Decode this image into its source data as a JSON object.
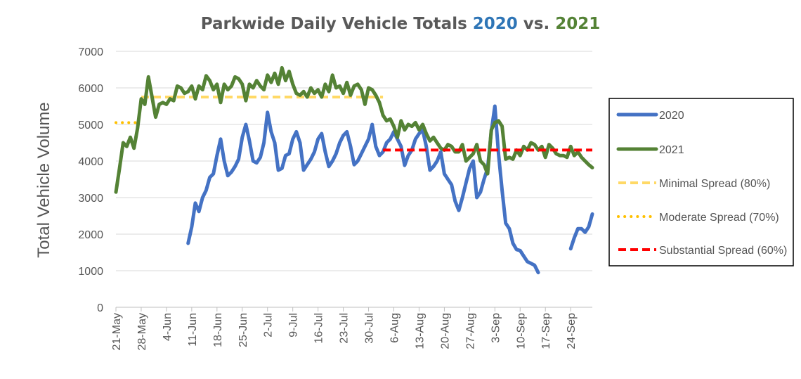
{
  "chart_data": {
    "type": "line",
    "title": {
      "prefix": "Parkwide Daily Vehicle Totals ",
      "year_a": "2020",
      "middle": " vs. ",
      "year_b": "2021"
    },
    "ylabel": "Total Vehicle Volume",
    "xlabel": "",
    "ylim": [
      0,
      7000
    ],
    "yticks": [
      0,
      1000,
      2000,
      3000,
      4000,
      5000,
      6000,
      7000
    ],
    "x_start": "21-May",
    "x_days": 133,
    "xticks": [
      {
        "day": 0,
        "label": "21-May"
      },
      {
        "day": 7,
        "label": "28-May"
      },
      {
        "day": 14,
        "label": "4-Jun"
      },
      {
        "day": 21,
        "label": "11-Jun"
      },
      {
        "day": 28,
        "label": "18-Jun"
      },
      {
        "day": 35,
        "label": "25-Jun"
      },
      {
        "day": 42,
        "label": "2-Jul"
      },
      {
        "day": 49,
        "label": "9-Jul"
      },
      {
        "day": 56,
        "label": "16-Jul"
      },
      {
        "day": 63,
        "label": "23-Jul"
      },
      {
        "day": 70,
        "label": "30-Jul"
      },
      {
        "day": 77,
        "label": "6-Aug"
      },
      {
        "day": 84,
        "label": "13-Aug"
      },
      {
        "day": 91,
        "label": "20-Aug"
      },
      {
        "day": 98,
        "label": "27-Aug"
      },
      {
        "day": 105,
        "label": "3-Sep"
      },
      {
        "day": 112,
        "label": "10-Sep"
      },
      {
        "day": 119,
        "label": "17-Sep"
      },
      {
        "day": 126,
        "label": "24-Sep"
      }
    ],
    "grid": true,
    "legend_position": "right",
    "series": [
      {
        "name": "2020",
        "color": "#4472C4",
        "style": "solid",
        "segments": [
          [
            [
              20,
              1750
            ],
            [
              21,
              2200
            ],
            [
              22,
              2850
            ],
            [
              23,
              2620
            ],
            [
              24,
              3000
            ],
            [
              25,
              3200
            ],
            [
              26,
              3550
            ],
            [
              27,
              3650
            ],
            [
              28,
              4150
            ],
            [
              29,
              4600
            ],
            [
              30,
              4000
            ],
            [
              31,
              3600
            ],
            [
              32,
              3700
            ],
            [
              33,
              3850
            ],
            [
              34,
              4050
            ],
            [
              35,
              4650
            ],
            [
              36,
              5000
            ],
            [
              37,
              4550
            ],
            [
              38,
              4000
            ],
            [
              39,
              3950
            ],
            [
              40,
              4100
            ],
            [
              41,
              4500
            ],
            [
              42,
              5330
            ],
            [
              43,
              4800
            ],
            [
              44,
              4500
            ],
            [
              45,
              3750
            ],
            [
              46,
              3800
            ],
            [
              47,
              4150
            ],
            [
              48,
              4200
            ],
            [
              49,
              4600
            ],
            [
              50,
              4800
            ],
            [
              51,
              4500
            ],
            [
              52,
              3750
            ],
            [
              53,
              3900
            ],
            [
              54,
              4050
            ],
            [
              55,
              4250
            ],
            [
              56,
              4600
            ],
            [
              57,
              4750
            ],
            [
              58,
              4250
            ],
            [
              59,
              3850
            ],
            [
              60,
              4000
            ],
            [
              61,
              4200
            ],
            [
              62,
              4500
            ],
            [
              63,
              4700
            ],
            [
              64,
              4800
            ],
            [
              65,
              4400
            ],
            [
              66,
              3900
            ],
            [
              67,
              4000
            ],
            [
              68,
              4200
            ],
            [
              69,
              4400
            ],
            [
              70,
              4600
            ],
            [
              71,
              5000
            ],
            [
              72,
              4400
            ],
            [
              73,
              4150
            ],
            [
              74,
              4250
            ],
            [
              75,
              4500
            ],
            [
              76,
              4600
            ],
            [
              77,
              4800
            ],
            [
              78,
              4600
            ],
            [
              79,
              4400
            ],
            [
              80,
              3880
            ],
            [
              81,
              4150
            ],
            [
              82,
              4300
            ],
            [
              83,
              4600
            ],
            [
              84,
              4750
            ],
            [
              85,
              4850
            ],
            [
              86,
              4400
            ],
            [
              87,
              3750
            ],
            [
              88,
              3850
            ],
            [
              89,
              4000
            ],
            [
              90,
              4250
            ],
            [
              91,
              3650
            ],
            [
              92,
              3500
            ],
            [
              93,
              3350
            ],
            [
              94,
              2900
            ],
            [
              95,
              2650
            ],
            [
              96,
              3000
            ],
            [
              97,
              3400
            ],
            [
              98,
              3800
            ],
            [
              99,
              4000
            ],
            [
              100,
              3000
            ],
            [
              101,
              3150
            ],
            [
              102,
              3500
            ],
            [
              103,
              3800
            ],
            [
              104,
              4800
            ],
            [
              105,
              5500
            ],
            [
              106,
              4200
            ],
            [
              107,
              3200
            ],
            [
              108,
              2300
            ],
            [
              109,
              2150
            ],
            [
              110,
              1750
            ],
            [
              111,
              1580
            ],
            [
              112,
              1550
            ],
            [
              113,
              1400
            ],
            [
              114,
              1250
            ],
            [
              115,
              1200
            ],
            [
              116,
              1150
            ],
            [
              117,
              950
            ]
          ],
          [
            [
              126,
              1600
            ],
            [
              127,
              1900
            ],
            [
              128,
              2150
            ],
            [
              129,
              2150
            ],
            [
              130,
              2050
            ],
            [
              131,
              2200
            ],
            [
              132,
              2550
            ]
          ]
        ]
      },
      {
        "name": "2021",
        "color": "#548235",
        "style": "solid",
        "segments": [
          [
            [
              0,
              3150
            ],
            [
              1,
              3800
            ],
            [
              2,
              4500
            ],
            [
              3,
              4400
            ],
            [
              4,
              4650
            ],
            [
              5,
              4350
            ],
            [
              6,
              4900
            ],
            [
              7,
              5700
            ],
            [
              8,
              5550
            ],
            [
              9,
              6300
            ],
            [
              10,
              5750
            ],
            [
              11,
              5200
            ],
            [
              12,
              5550
            ],
            [
              13,
              5600
            ],
            [
              14,
              5550
            ],
            [
              15,
              5700
            ],
            [
              16,
              5650
            ],
            [
              17,
              6050
            ],
            [
              18,
              6000
            ],
            [
              19,
              5850
            ],
            [
              20,
              5900
            ],
            [
              21,
              6050
            ],
            [
              22,
              5700
            ],
            [
              23,
              6050
            ],
            [
              24,
              5950
            ],
            [
              25,
              6330
            ],
            [
              26,
              6200
            ],
            [
              27,
              5950
            ],
            [
              28,
              6100
            ],
            [
              29,
              5600
            ],
            [
              30,
              6100
            ],
            [
              31,
              5950
            ],
            [
              32,
              6050
            ],
            [
              33,
              6300
            ],
            [
              34,
              6250
            ],
            [
              35,
              6100
            ],
            [
              36,
              5650
            ],
            [
              37,
              6100
            ],
            [
              38,
              6000
            ],
            [
              39,
              6200
            ],
            [
              40,
              6050
            ],
            [
              41,
              5950
            ],
            [
              42,
              6350
            ],
            [
              43,
              6150
            ],
            [
              44,
              6400
            ],
            [
              45,
              6100
            ],
            [
              46,
              6550
            ],
            [
              47,
              6200
            ],
            [
              48,
              6450
            ],
            [
              49,
              6100
            ],
            [
              50,
              5850
            ],
            [
              51,
              5800
            ],
            [
              52,
              5900
            ],
            [
              53,
              5750
            ],
            [
              54,
              6000
            ],
            [
              55,
              5850
            ],
            [
              56,
              5950
            ],
            [
              57,
              5750
            ],
            [
              58,
              6100
            ],
            [
              59,
              5900
            ],
            [
              60,
              6350
            ],
            [
              61,
              6000
            ],
            [
              62,
              6050
            ],
            [
              63,
              5850
            ],
            [
              64,
              6150
            ],
            [
              65,
              5800
            ],
            [
              66,
              6050
            ],
            [
              67,
              6100
            ],
            [
              68,
              5950
            ],
            [
              69,
              5550
            ],
            [
              70,
              6000
            ],
            [
              71,
              5950
            ],
            [
              72,
              5800
            ],
            [
              73,
              5600
            ],
            [
              74,
              5250
            ],
            [
              75,
              5100
            ],
            [
              76,
              5150
            ],
            [
              77,
              4950
            ],
            [
              78,
              4650
            ],
            [
              79,
              5100
            ],
            [
              80,
              4850
            ],
            [
              81,
              5000
            ],
            [
              82,
              4950
            ],
            [
              83,
              5050
            ],
            [
              84,
              4850
            ],
            [
              85,
              5000
            ],
            [
              86,
              4750
            ],
            [
              87,
              4550
            ],
            [
              88,
              4650
            ],
            [
              89,
              4500
            ],
            [
              90,
              4350
            ],
            [
              91,
              4300
            ],
            [
              92,
              4450
            ],
            [
              93,
              4400
            ],
            [
              94,
              4250
            ],
            [
              95,
              4250
            ],
            [
              96,
              4450
            ],
            [
              97,
              4000
            ],
            [
              98,
              4100
            ],
            [
              99,
              4200
            ],
            [
              100,
              4450
            ],
            [
              101,
              4000
            ],
            [
              102,
              3900
            ],
            [
              103,
              3650
            ],
            [
              104,
              4850
            ],
            [
              105,
              5050
            ],
            [
              106,
              5100
            ],
            [
              107,
              4950
            ],
            [
              108,
              4050
            ],
            [
              109,
              4100
            ],
            [
              110,
              4050
            ],
            [
              111,
              4300
            ],
            [
              112,
              4150
            ],
            [
              113,
              4400
            ],
            [
              114,
              4300
            ],
            [
              115,
              4500
            ],
            [
              116,
              4450
            ],
            [
              117,
              4300
            ],
            [
              118,
              4400
            ],
            [
              119,
              4100
            ],
            [
              120,
              4450
            ],
            [
              121,
              4350
            ],
            [
              122,
              4200
            ],
            [
              123,
              4150
            ],
            [
              124,
              4150
            ],
            [
              125,
              4100
            ],
            [
              126,
              4400
            ],
            [
              127,
              4150
            ],
            [
              128,
              4250
            ],
            [
              129,
              4100
            ],
            [
              130,
              4000
            ],
            [
              131,
              3900
            ],
            [
              132,
              3820
            ]
          ]
        ]
      },
      {
        "name": "Minimal Spread (80%)",
        "color": "#FFD966",
        "style": "dashed",
        "segments": [
          [
            [
              7,
              5750
            ],
            [
              74,
              5750
            ]
          ]
        ]
      },
      {
        "name": "Moderate Spread (70%)",
        "color": "#FFC000",
        "style": "dotted",
        "segments": [
          [
            [
              0,
              5050
            ],
            [
              7,
              5050
            ]
          ]
        ]
      },
      {
        "name": "Substantial Spread (60%)",
        "color": "#FF0000",
        "style": "dashed",
        "segments": [
          [
            [
              74,
              4300
            ],
            [
              132,
              4300
            ]
          ]
        ]
      }
    ]
  }
}
